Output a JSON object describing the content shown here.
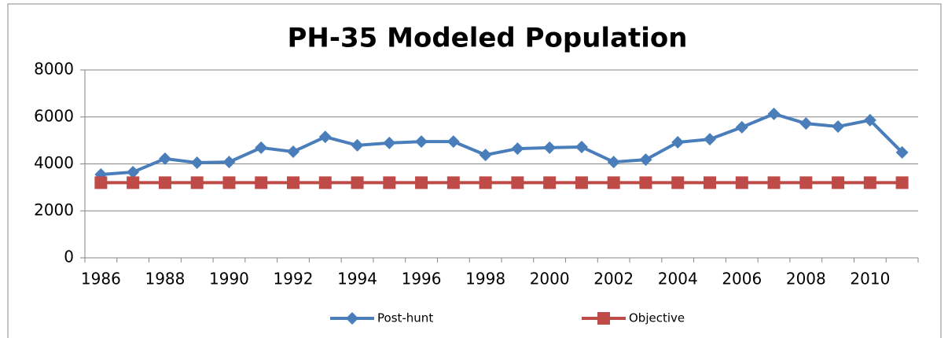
{
  "chart_data": {
    "type": "line",
    "title": "PH-35 Modeled Population",
    "categories": [
      "1986",
      null,
      "1988",
      null,
      "1990",
      null,
      "1992",
      null,
      "1994",
      null,
      "1996",
      null,
      "1998",
      null,
      "2000",
      null,
      "2002",
      null,
      "2004",
      null,
      "2006",
      null,
      "2008",
      null,
      "2010",
      null
    ],
    "series": [
      {
        "name": "Post-hunt",
        "color": "#4a7ebb",
        "marker": "diamond",
        "values": [
          3550,
          3650,
          4220,
          4050,
          4080,
          4690,
          4520,
          5150,
          4790,
          4890,
          4950,
          4950,
          4380,
          4650,
          4690,
          4720,
          4080,
          4180,
          4920,
          5050,
          5560,
          6130,
          5720,
          5590,
          5860,
          4490
        ]
      },
      {
        "name": "Objective",
        "color": "#be4b48",
        "marker": "square",
        "values": [
          3200,
          3200,
          3200,
          3200,
          3200,
          3200,
          3200,
          3200,
          3200,
          3200,
          3200,
          3200,
          3200,
          3200,
          3200,
          3200,
          3200,
          3200,
          3200,
          3200,
          3200,
          3200,
          3200,
          3200,
          3200,
          3200
        ]
      }
    ],
    "ylim": [
      0,
      8000
    ],
    "yticks": [
      0,
      2000,
      4000,
      6000,
      8000
    ],
    "grid": true,
    "legend": "bottom"
  }
}
